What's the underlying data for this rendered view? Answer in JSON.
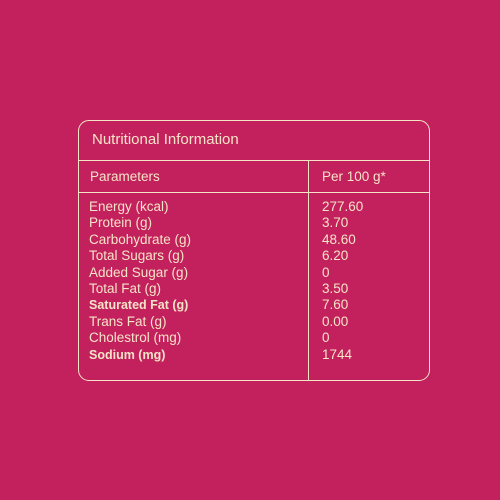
{
  "table": {
    "title": "Nutritional Information",
    "headers": [
      "Parameters",
      "Per 100 g*"
    ],
    "rows": [
      [
        "Energy (kcal)",
        "277.60"
      ],
      [
        "Protein (g)",
        "3.70"
      ],
      [
        "Carbohydrate (g)",
        "48.60"
      ],
      [
        "Total Sugars (g)",
        "6.20"
      ],
      [
        "Added Sugar (g)",
        "0"
      ],
      [
        "Total Fat (g)",
        "3.50"
      ],
      [
        "Saturated Fat (g)",
        "7.60"
      ],
      [
        "Trans Fat (g)",
        "0.00"
      ],
      [
        "Cholestrol (mg)",
        "0"
      ],
      [
        "Sodium (mg)",
        "1744"
      ]
    ]
  }
}
